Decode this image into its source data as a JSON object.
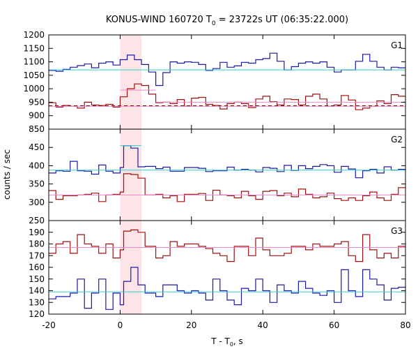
{
  "chart_data": {
    "type": "line",
    "title": "KONUS-WIND 160720 T",
    "title_sub": "0",
    "title_rest": " = 23722s UT (06:35:22.000)",
    "xlabel_main": "T - T",
    "xlabel_sub": "0",
    "xlabel_rest": ", s",
    "ylabel": "counts / sec",
    "xlim": [
      -20,
      80
    ],
    "xticks": [
      "-20",
      "0",
      "20",
      "40",
      "60",
      "80"
    ],
    "xtick_values": [
      -20,
      0,
      20,
      40,
      60,
      80
    ],
    "highlight": [
      0,
      6
    ],
    "colors": {
      "blue": "#1a1aa8",
      "red": "#a01010",
      "cyan": "#33cccc",
      "pink": "#ee88cc",
      "dashed": "#8b0000",
      "highlight": "#fde4e6"
    },
    "panels": [
      {
        "label": "G1",
        "ylim": [
          850,
          1200
        ],
        "yticks": [
          850,
          900,
          950,
          1000,
          1050,
          1100,
          1150,
          1200
        ],
        "ytick_labels": [
          "850",
          "900",
          "950",
          "1000",
          "1050",
          "1100",
          "1150",
          "1200"
        ],
        "series": [
          {
            "color": "blue",
            "edges": [
              -20,
              -18,
              -16,
              -14,
              -12,
              -10,
              -8,
              -6,
              -4,
              -2,
              0,
              2,
              4,
              6,
              8,
              10,
              12,
              14,
              16,
              18,
              20,
              22,
              24,
              26,
              28,
              30,
              32,
              34,
              36,
              38,
              40,
              42,
              44,
              46,
              48,
              50,
              52,
              54,
              56,
              58,
              60,
              62,
              64,
              66,
              68,
              70,
              72,
              74,
              76,
              78,
              80
            ],
            "values": [
              1068,
              1065,
              1072,
              1080,
              1086,
              1092,
              1078,
              1095,
              1100,
              1088,
              1108,
              1125,
              1108,
              1090,
              1062,
              1012,
              1060,
              1100,
              1095,
              1100,
              1098,
              1090,
              1068,
              1075,
              1098,
              1080,
              1085,
              1098,
              1095,
              1108,
              1112,
              1132,
              1102,
              1070,
              1082,
              1095,
              1100,
              1095,
              1100,
              1080,
              1062,
              1070,
              1070,
              1102,
              1128,
              1102,
              1080,
              1070,
              1080,
              1078
            ]
          },
          {
            "color": "red",
            "edges": [
              -20,
              -18,
              -16,
              -14,
              -12,
              -10,
              -8,
              -6,
              -4,
              -2,
              0,
              2,
              4,
              6,
              8,
              10,
              12,
              14,
              16,
              18,
              20,
              22,
              24,
              26,
              28,
              30,
              32,
              34,
              36,
              38,
              40,
              42,
              44,
              46,
              48,
              50,
              52,
              54,
              56,
              58,
              60,
              62,
              64,
              66,
              68,
              70,
              72,
              74,
              76,
              78,
              80
            ],
            "values": [
              948,
              932,
              938,
              935,
              928,
              950,
              940,
              938,
              942,
              932,
              970,
              1000,
              1018,
              1012,
              980,
              948,
              950,
              945,
              960,
              935,
              965,
              968,
              942,
              938,
              925,
              945,
              950,
              945,
              930,
              962,
              972,
              952,
              940,
              962,
              960,
              940,
              972,
              980,
              962,
              935,
              940,
              975,
              958,
              922,
              928,
              935,
              955,
              945,
              978,
              972
            ]
          },
          {
            "color": "cyan",
            "constant": 1070,
            "from": -20,
            "to": 80
          },
          {
            "color": "pink",
            "constant": 935,
            "from": -20,
            "to": 80
          },
          {
            "color": "pink",
            "constant": 995,
            "from": 0,
            "to": 10
          },
          {
            "color": "pink",
            "constant": 950,
            "from": 10,
            "to": 80
          },
          {
            "color": "dashed",
            "constant": 937,
            "from": -20,
            "to": 80,
            "dashed": true
          }
        ]
      },
      {
        "label": "G2",
        "ylim": [
          250,
          500
        ],
        "yticks": [
          250,
          300,
          350,
          400,
          450
        ],
        "ytick_labels": [
          "250",
          "300",
          "350",
          "400",
          "450"
        ],
        "series": [
          {
            "color": "blue",
            "edges": [
              -20,
              -18,
              -16,
              -14,
              -12,
              -10,
              -8,
              -6,
              -4,
              -2,
              0,
              1,
              3,
              5,
              7,
              10,
              12,
              14,
              16,
              18,
              20,
              22,
              24,
              26,
              28,
              30,
              32,
              34,
              36,
              38,
              40,
              42,
              44,
              46,
              48,
              50,
              52,
              54,
              56,
              58,
              60,
              62,
              64,
              66,
              68,
              70,
              72,
              74,
              76,
              78,
              80
            ],
            "values": [
              380,
              386,
              385,
              412,
              386,
              385,
              377,
              402,
              385,
              380,
              395,
              455,
              448,
              397,
              398,
              392,
              396,
              385,
              385,
              395,
              395,
              393,
              384,
              386,
              386,
              396,
              388,
              390,
              388,
              383,
              395,
              393,
              384,
              401,
              387,
              400,
              392,
              398,
              403,
              400,
              382,
              398,
              391,
              367,
              386,
              390,
              380,
              397,
              388,
              390
            ]
          },
          {
            "color": "red",
            "edges": [
              -20,
              -18,
              -16,
              -14,
              -12,
              -10,
              -8,
              -6,
              -4,
              -2,
              0,
              1,
              3,
              5,
              7,
              10,
              12,
              14,
              16,
              18,
              20,
              22,
              24,
              26,
              28,
              30,
              32,
              34,
              36,
              38,
              40,
              42,
              44,
              46,
              48,
              50,
              52,
              54,
              56,
              58,
              60,
              62,
              64,
              66,
              68,
              70,
              72,
              74,
              76,
              78,
              80
            ],
            "values": [
              332,
              308,
              318,
              318,
              320,
              322,
              325,
              302,
              320,
              322,
              328,
              378,
              376,
              366,
              320,
              322,
              312,
              318,
              302,
              322,
              322,
              324,
              305,
              333,
              320,
              318,
              312,
              330,
              318,
              308,
              330,
              332,
              318,
              325,
              315,
              336,
              322,
              312,
              315,
              325,
              310,
              305,
              312,
              305,
              318,
              328,
              312,
              305,
              322,
              340
            ]
          },
          {
            "color": "cyan",
            "constant": 388,
            "from": -20,
            "to": 80
          },
          {
            "color": "cyan",
            "constant": 455,
            "from": 0,
            "to": 6
          },
          {
            "color": "pink",
            "constant": 320,
            "from": -20,
            "to": 80
          }
        ]
      },
      {
        "label": "G3",
        "ylim": [
          120,
          200
        ],
        "yticks": [
          120,
          130,
          140,
          150,
          160,
          170,
          180,
          190
        ],
        "ytick_labels": [
          "120",
          "130",
          "140",
          "150",
          "160",
          "170",
          "180",
          "190"
        ],
        "series": [
          {
            "color": "blue",
            "edges": [
              -20,
              -18,
              -16,
              -14,
              -12,
              -10,
              -8,
              -6,
              -4,
              -2,
              0,
              1,
              3,
              5,
              7,
              10,
              12,
              14,
              16,
              18,
              20,
              22,
              24,
              26,
              28,
              30,
              32,
              34,
              36,
              38,
              40,
              42,
              44,
              46,
              48,
              50,
              52,
              54,
              56,
              58,
              60,
              62,
              64,
              66,
              68,
              70,
              72,
              74,
              76,
              78,
              80
            ],
            "values": [
              133,
              135,
              135,
              138,
              150,
              125,
              138,
              150,
              124,
              138,
              128,
              148,
              160,
              145,
              138,
              135,
              145,
              145,
              140,
              138,
              140,
              138,
              132,
              150,
              140,
              132,
              128,
              142,
              140,
              150,
              140,
              130,
              145,
              140,
              138,
              148,
              142,
              138,
              136,
              140,
              130,
              158,
              140,
              135,
              158,
              150,
              145,
              132,
              142,
              143
            ]
          },
          {
            "color": "red",
            "edges": [
              -20,
              -18,
              -16,
              -14,
              -12,
              -10,
              -8,
              -6,
              -4,
              -2,
              0,
              1,
              3,
              5,
              7,
              10,
              12,
              14,
              16,
              18,
              20,
              22,
              24,
              26,
              28,
              30,
              32,
              34,
              36,
              38,
              40,
              42,
              44,
              46,
              48,
              50,
              52,
              54,
              56,
              58,
              60,
              62,
              64,
              66,
              68,
              70,
              72,
              74,
              76,
              78,
              80
            ],
            "values": [
              172,
              180,
              182,
              172,
              188,
              180,
              178,
              172,
              180,
              168,
              175,
              191,
              192,
              190,
              178,
              168,
              170,
              182,
              178,
              180,
              180,
              178,
              176,
              172,
              170,
              165,
              178,
              178,
              170,
              185,
              175,
              170,
              170,
              172,
              178,
              178,
              175,
              180,
              178,
              178,
              180,
              182,
              170,
              165,
              188,
              175,
              168,
              172,
              168,
              178
            ]
          },
          {
            "color": "cyan",
            "constant": 139,
            "from": -20,
            "to": 80
          },
          {
            "color": "pink",
            "constant": 177,
            "from": -20,
            "to": 80
          }
        ]
      }
    ]
  }
}
